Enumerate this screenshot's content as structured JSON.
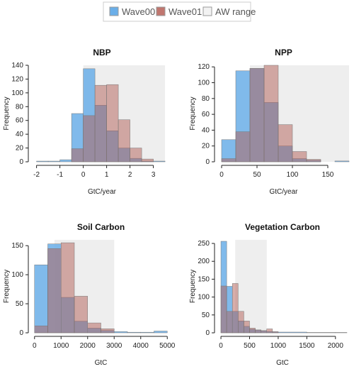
{
  "legend": {
    "items": [
      {
        "label": "Wave00",
        "color": "#6aaee8"
      },
      {
        "label": "Wave01",
        "color": "#c0766f"
      },
      {
        "label": "AW range",
        "color": "#f2f2f2"
      }
    ]
  },
  "chart_data": [
    {
      "type": "histogram",
      "title": "NBP",
      "xlabel": "GtC/year",
      "ylabel": "Frequency",
      "xlim": [
        -2.2,
        3.8
      ],
      "ylim": [
        0,
        140
      ],
      "xticks": [
        -2,
        -1,
        0,
        1,
        2,
        3
      ],
      "yticks": [
        0,
        20,
        40,
        60,
        80,
        100,
        120,
        140
      ],
      "aw_range": [
        0,
        3.5
      ],
      "series": [
        {
          "name": "Wave00",
          "bins": [
            [
              -2,
              -1.5,
              1
            ],
            [
              -1.5,
              -1,
              1
            ],
            [
              -1,
              -0.5,
              3
            ],
            [
              -0.5,
              0,
              70
            ],
            [
              0,
              0.5,
              135
            ],
            [
              0.5,
              1,
              82
            ],
            [
              1,
              1.5,
              45
            ],
            [
              1.5,
              2,
              20
            ],
            [
              2,
              2.5,
              5
            ],
            [
              2.5,
              3,
              1
            ],
            [
              3,
              3.5,
              1
            ]
          ]
        },
        {
          "name": "Wave01",
          "bins": [
            [
              -0.5,
              0,
              19
            ],
            [
              0,
              0.5,
              67
            ],
            [
              0.5,
              1,
              111
            ],
            [
              1,
              1.5,
              112
            ],
            [
              1.5,
              2,
              61
            ],
            [
              2,
              2.5,
              20
            ],
            [
              2.5,
              3,
              4
            ]
          ]
        }
      ]
    },
    {
      "type": "histogram",
      "title": "NPP",
      "xlabel": "GtC/year",
      "ylabel": "Frequency",
      "xlim": [
        -5,
        180
      ],
      "ylim": [
        0,
        122
      ],
      "xticks": [
        0,
        50,
        100,
        150
      ],
      "yticks": [
        0,
        20,
        40,
        60,
        80,
        100,
        120
      ],
      "aw_range": [
        40,
        180
      ],
      "series": [
        {
          "name": "Wave00",
          "bins": [
            [
              0,
              20,
              28
            ],
            [
              20,
              40,
              115
            ],
            [
              40,
              60,
              118
            ],
            [
              60,
              80,
              75
            ],
            [
              80,
              100,
              20
            ],
            [
              100,
              120,
              4
            ],
            [
              120,
              140,
              2
            ],
            [
              160,
              180,
              1
            ]
          ]
        },
        {
          "name": "Wave01",
          "bins": [
            [
              0,
              20,
              4
            ],
            [
              20,
              40,
              38
            ],
            [
              40,
              60,
              118
            ],
            [
              60,
              80,
              122
            ],
            [
              80,
              100,
              47
            ],
            [
              100,
              120,
              13
            ],
            [
              120,
              140,
              3
            ]
          ]
        }
      ]
    },
    {
      "type": "histogram",
      "title": "Soil Carbon",
      "xlabel": "GtC",
      "ylabel": "Frequency",
      "xlim": [
        -100,
        5100
      ],
      "ylim": [
        0,
        160
      ],
      "xticks": [
        0,
        1000,
        2000,
        3000,
        4000,
        5000
      ],
      "yticks": [
        0,
        50,
        100,
        150
      ],
      "aw_range": [
        750,
        3000
      ],
      "series": [
        {
          "name": "Wave00",
          "bins": [
            [
              0,
              500,
              117
            ],
            [
              500,
              1000,
              153
            ],
            [
              1000,
              1500,
              61
            ],
            [
              1500,
              2000,
              20
            ],
            [
              2000,
              2500,
              8
            ],
            [
              2500,
              3000,
              4
            ],
            [
              3000,
              3500,
              2
            ],
            [
              3500,
              4000,
              1
            ],
            [
              4000,
              4500,
              1
            ],
            [
              4500,
              5000,
              3
            ]
          ]
        },
        {
          "name": "Wave01",
          "bins": [
            [
              0,
              500,
              12
            ],
            [
              500,
              1000,
              145
            ],
            [
              1000,
              1500,
              155
            ],
            [
              1500,
              2000,
              63
            ],
            [
              2000,
              2500,
              17
            ],
            [
              2500,
              3000,
              7
            ]
          ]
        }
      ]
    },
    {
      "type": "histogram",
      "title": "Vegetation Carbon",
      "xlabel": "GtC",
      "ylabel": "Frequency",
      "xlim": [
        -50,
        2200
      ],
      "ylim": [
        0,
        260
      ],
      "xticks": [
        0,
        500,
        1000,
        1500,
        2000
      ],
      "yticks": [
        0,
        50,
        100,
        150,
        200,
        250
      ],
      "aw_range": [
        250,
        800
      ],
      "series": [
        {
          "name": "Wave00",
          "bins": [
            [
              0,
              100,
              256
            ],
            [
              100,
              200,
              130
            ],
            [
              200,
              300,
              60
            ],
            [
              300,
              400,
              33
            ],
            [
              400,
              500,
              18
            ],
            [
              500,
              600,
              10
            ],
            [
              600,
              700,
              8
            ],
            [
              700,
              800,
              6
            ],
            [
              800,
              900,
              4
            ],
            [
              900,
              1000,
              3
            ],
            [
              1000,
              1500,
              2
            ],
            [
              1500,
              2000,
              1
            ],
            [
              2000,
              2200,
              1
            ]
          ]
        },
        {
          "name": "Wave01",
          "bins": [
            [
              0,
              100,
              131
            ],
            [
              100,
              200,
              60
            ],
            [
              200,
              300,
              138
            ],
            [
              300,
              400,
              60
            ],
            [
              400,
              500,
              33
            ],
            [
              500,
              600,
              13
            ],
            [
              600,
              700,
              8
            ],
            [
              700,
              800,
              6
            ],
            [
              800,
              900,
              11
            ],
            [
              900,
              1000,
              3
            ]
          ]
        }
      ]
    }
  ]
}
